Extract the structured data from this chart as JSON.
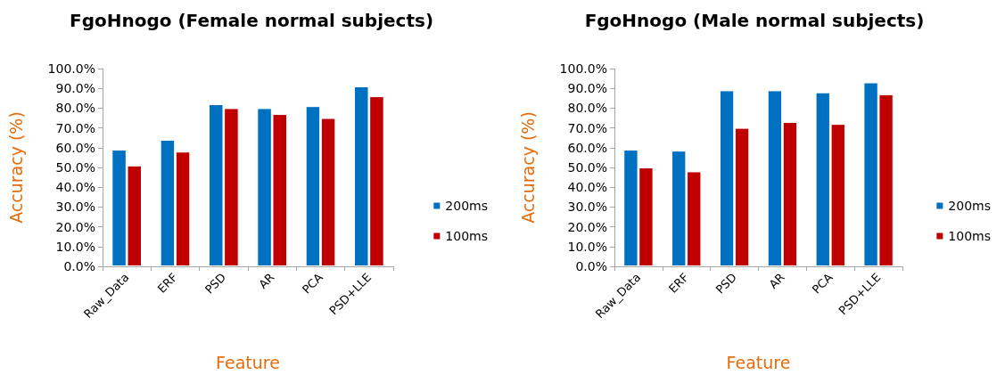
{
  "chart_data": [
    {
      "type": "bar",
      "title": "FgoHnogo (Female normal subjects)",
      "xlabel": "Feature",
      "ylabel": "Accuracy (%)",
      "categories": [
        "Raw_Data",
        "ERF",
        "PSD",
        "AR",
        "PCA",
        "PSD+LLE"
      ],
      "series": [
        {
          "name": "200ms",
          "color": "#0070c0",
          "values": [
            59,
            64,
            82,
            80,
            81,
            91
          ]
        },
        {
          "name": "100ms",
          "color": "#c00000",
          "values": [
            51,
            58,
            80,
            77,
            75,
            86
          ]
        }
      ],
      "ylim": [
        0,
        100
      ],
      "yticks": [
        {
          "value": 0,
          "label": "0.0%"
        },
        {
          "value": 10,
          "label": "10.0%"
        },
        {
          "value": 20,
          "label": "20.0%"
        },
        {
          "value": 30,
          "label": "30.0%"
        },
        {
          "value": 40,
          "label": "40.0%"
        },
        {
          "value": 50,
          "label": "50.0%"
        },
        {
          "value": 60,
          "label": "60.0%"
        },
        {
          "value": 70,
          "label": "70.0%"
        },
        {
          "value": 80,
          "label": "80.0%"
        },
        {
          "value": 90,
          "label": "90.0%"
        },
        {
          "value": 100,
          "label": "100.0%"
        }
      ],
      "grid": false,
      "legend": "right"
    },
    {
      "type": "bar",
      "title": "FgoHnogo (Male normal subjects)",
      "xlabel": "Feature",
      "ylabel": "Accuracy (%)",
      "categories": [
        "Raw_Data",
        "ERF",
        "PSD",
        "AR",
        "PCA",
        "PSD+LLE"
      ],
      "series": [
        {
          "name": "200ms",
          "color": "#0070c0",
          "values": [
            59,
            58.5,
            89,
            89,
            88,
            93
          ]
        },
        {
          "name": "100ms",
          "color": "#c00000",
          "values": [
            50,
            48,
            70,
            73,
            72,
            87
          ]
        }
      ],
      "ylim": [
        0,
        100
      ],
      "yticks": [
        {
          "value": 0,
          "label": "0.0%"
        },
        {
          "value": 10,
          "label": "10.0%"
        },
        {
          "value": 20,
          "label": "20.0%"
        },
        {
          "value": 30,
          "label": "30.0%"
        },
        {
          "value": 40,
          "label": "40.0%"
        },
        {
          "value": 50,
          "label": "50.0%"
        },
        {
          "value": 60,
          "label": "60.0%"
        },
        {
          "value": 70,
          "label": "70.0%"
        },
        {
          "value": 80,
          "label": "80.0%"
        },
        {
          "value": 90,
          "label": "90.0%"
        },
        {
          "value": 100,
          "label": "100.0%"
        }
      ],
      "grid": false,
      "legend": "right"
    }
  ]
}
